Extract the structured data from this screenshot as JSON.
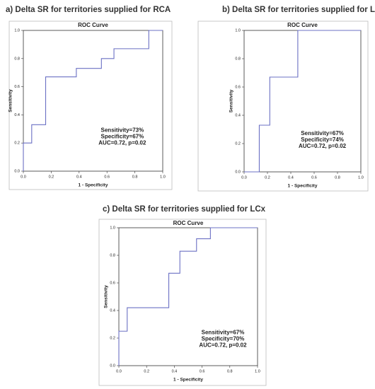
{
  "chart_data": [
    {
      "type": "line",
      "heading": "a) Delta SR for territories supplied for RCA",
      "title": "ROC Curve",
      "xlabel": "1 - Specificity",
      "ylabel": "Sensitivity",
      "annotations": [
        "Sensitivity=73%",
        "Specificity=67%",
        "AUC=0.72, p=0.02"
      ],
      "x": [
        0,
        0,
        0.06,
        0.06,
        0.16,
        0.16,
        0.38,
        0.38,
        0.56,
        0.56,
        0.65,
        0.65,
        0.9,
        0.9,
        1
      ],
      "series": [
        {
          "color": "#6b70c4",
          "values": [
            0,
            0.2,
            0.2,
            0.33,
            0.33,
            0.67,
            0.67,
            0.73,
            0.73,
            0.8,
            0.8,
            0.87,
            0.87,
            1,
            1
          ]
        }
      ],
      "xlim": [
        0,
        1
      ],
      "ylim": [
        0,
        1
      ],
      "xticks": [
        {
          "value": 0,
          "label": "0.0"
        },
        0.2,
        0.4,
        0.6,
        0.8,
        {
          "value": 1,
          "label": "1.0"
        }
      ],
      "yticks": [
        {
          "value": 0,
          "label": "0.0"
        },
        0.2,
        0.4,
        0.6,
        0.8,
        {
          "value": 1,
          "label": "1.0"
        }
      ]
    },
    {
      "type": "line",
      "heading": "b) Delta SR for territories supplied for LAD",
      "title": "ROC Curve",
      "xlabel": "1 - Specificity",
      "ylabel": "Sensitivity",
      "annotations": [
        "Sensitivity=67%",
        "Specificity=74%",
        "AUC=0.72, p=0.02"
      ],
      "x": [
        0,
        0.13,
        0.13,
        0.22,
        0.22,
        0.46,
        0.46,
        1
      ],
      "series": [
        {
          "color": "#6b70c4",
          "values": [
            0,
            0,
            0.33,
            0.33,
            0.67,
            0.67,
            1,
            1
          ]
        }
      ],
      "xlim": [
        0,
        1
      ],
      "ylim": [
        0,
        1
      ],
      "xticks": [
        {
          "value": 0,
          "label": "0.0"
        },
        0.2,
        0.4,
        0.6,
        0.8,
        {
          "value": 1,
          "label": "1.0"
        }
      ],
      "yticks": [
        {
          "value": 0,
          "label": "0.0"
        },
        0.2,
        0.4,
        0.6,
        0.8,
        {
          "value": 1,
          "label": "1.0"
        }
      ]
    },
    {
      "type": "line",
      "heading": "c) Delta SR for territories supplied for LCx",
      "title": "ROC Curve",
      "xlabel": "1 - Specificity",
      "ylabel": "Sensitivity",
      "annotations": [
        "Sensitivity=67%",
        "Specificity=70%",
        "AUC=0.72, p=0.02"
      ],
      "x": [
        0,
        0,
        0.06,
        0.06,
        0.36,
        0.36,
        0.44,
        0.44,
        0.56,
        0.56,
        0.66,
        0.66,
        1
      ],
      "series": [
        {
          "color": "#6b70c4",
          "values": [
            0,
            0.25,
            0.25,
            0.42,
            0.42,
            0.67,
            0.67,
            0.83,
            0.83,
            0.92,
            0.92,
            1,
            1
          ]
        }
      ],
      "xlim": [
        0,
        1
      ],
      "ylim": [
        0,
        1
      ],
      "xticks": [
        {
          "value": 0,
          "label": "0.0"
        },
        0.2,
        0.4,
        0.6,
        0.8,
        {
          "value": 1,
          "label": "1.0"
        }
      ],
      "yticks": [
        {
          "value": 0,
          "label": "0.0"
        },
        0.2,
        0.4,
        0.6,
        0.8,
        {
          "value": 1,
          "label": "1.0"
        }
      ]
    }
  ]
}
